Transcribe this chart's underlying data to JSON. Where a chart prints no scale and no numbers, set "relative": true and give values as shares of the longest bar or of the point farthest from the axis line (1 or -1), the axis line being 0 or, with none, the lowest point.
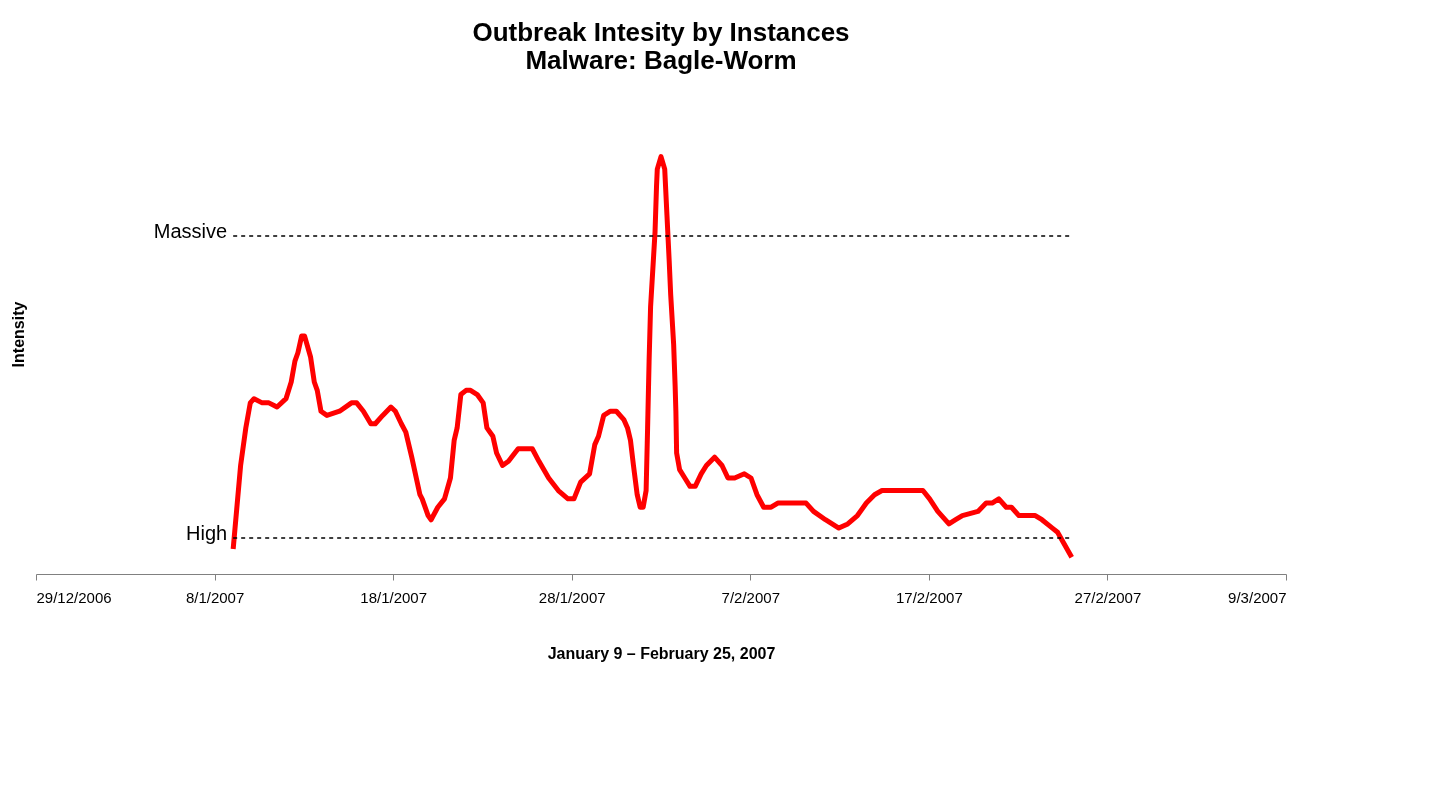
{
  "chart_data": {
    "type": "line",
    "title": "Outbreak Intesity by Instances",
    "subtitle": "Malware: Bagle-Worm",
    "xlabel": "January 9 – February 25, 2007",
    "ylabel": "Intensity",
    "relative": true,
    "grid": false,
    "marker": "none",
    "line_style": "solid",
    "xlim": [
      "2006-12-29",
      "2007-03-09"
    ],
    "xticks": [
      {
        "value": "2006-12-29",
        "label": "29/12/2006"
      },
      {
        "value": "2007-01-08",
        "label": "8/1/2007"
      },
      {
        "value": "2007-01-18",
        "label": "18/1/2007"
      },
      {
        "value": "2007-01-28",
        "label": "28/1/2007"
      },
      {
        "value": "2007-02-07",
        "label": "7/2/2007"
      },
      {
        "value": "2007-02-17",
        "label": "17/2/2007"
      },
      {
        "value": "2007-02-27",
        "label": "27/2/2007"
      },
      {
        "value": "2007-03-09",
        "label": "9/3/2007"
      }
    ],
    "ref_lines": [
      {
        "axis": "y",
        "value": 0.81,
        "label": "Massive",
        "color": "#000000",
        "line_style": "dashed"
      },
      {
        "axis": "y",
        "value": 0.086,
        "label": "High",
        "color": "#000000",
        "line_style": "dashed"
      }
    ],
    "x": [
      "2007-01-09T01:00",
      "2007-01-09T11:00",
      "2007-01-09T18:00",
      "2007-01-10T00:00",
      "2007-01-10T05:00",
      "2007-01-10T16:00",
      "2007-01-11T01:00",
      "2007-01-11T12:00",
      "2007-01-12T00:00",
      "2007-01-12T07:00",
      "2007-01-12T12:00",
      "2007-01-12T16:00",
      "2007-01-12T21:00",
      "2007-01-13T01:00",
      "2007-01-13T09:00",
      "2007-01-13T14:00",
      "2007-01-13T18:00",
      "2007-01-13T23:00",
      "2007-01-14T07:00",
      "2007-01-15T00:00",
      "2007-01-15T16:00",
      "2007-01-15T23:00",
      "2007-01-16T08:00",
      "2007-01-16T18:00",
      "2007-01-17T00:00",
      "2007-01-17T10:00",
      "2007-01-17T21:00",
      "2007-01-18T03:00",
      "2007-01-18T11:00",
      "2007-01-18T17:00",
      "2007-01-19T01:00",
      "2007-01-19T12:00",
      "2007-01-19T15:00",
      "2007-01-19T23:00",
      "2007-01-20T03:00",
      "2007-01-20T12:00",
      "2007-01-20T21:00",
      "2007-01-21T05:00",
      "2007-01-21T10:00",
      "2007-01-21T14:00",
      "2007-01-21T19:00",
      "2007-01-22T02:00",
      "2007-01-22T08:00",
      "2007-01-22T17:00",
      "2007-01-23T01:00",
      "2007-01-23T06:00",
      "2007-01-23T14:00",
      "2007-01-23T19:00",
      "2007-01-24T03:00",
      "2007-01-24T11:00",
      "2007-01-25T00:00",
      "2007-01-25T10:00",
      "2007-01-25T19:00",
      "2007-01-26T04:00",
      "2007-01-26T17:00",
      "2007-01-27T06:00",
      "2007-01-27T19:00",
      "2007-01-28T03:00",
      "2007-01-28T12:00",
      "2007-01-29T00:00",
      "2007-01-29T07:00",
      "2007-01-29T12:00",
      "2007-01-29T19:00",
      "2007-01-30T04:00",
      "2007-01-30T12:00",
      "2007-01-30T22:00",
      "2007-01-31T03:00",
      "2007-01-31T07:00",
      "2007-01-31T11:00",
      "2007-01-31T16:00",
      "2007-01-31T20:00",
      "2007-02-01T00:00",
      "2007-02-01T04:00",
      "2007-02-01T06:00",
      "2007-02-01T08:00",
      "2007-02-01T10:00",
      "2007-02-01T14:00",
      "2007-02-01T16:00",
      "2007-02-01T18:00",
      "2007-02-01T19:00",
      "2007-02-02T00:00",
      "2007-02-02T05:00",
      "2007-02-02T08:00",
      "2007-02-02T11:00",
      "2007-02-02T13:00",
      "2007-02-02T17:00",
      "2007-02-02T19:00",
      "2007-02-02T20:00",
      "2007-02-02T21:00",
      "2007-02-03T01:00",
      "2007-02-03T08:00",
      "2007-02-03T15:00",
      "2007-02-03T22:00",
      "2007-02-04T06:00",
      "2007-02-04T13:00",
      "2007-02-05T00:00",
      "2007-02-05T10:00",
      "2007-02-05T18:00",
      "2007-02-06T03:00",
      "2007-02-06T16:00",
      "2007-02-07T01:00",
      "2007-02-07T09:00",
      "2007-02-07T18:00",
      "2007-02-08T04:00",
      "2007-02-08T13:00",
      "2007-02-09T02:00",
      "2007-02-09T18:00",
      "2007-02-10T03:00",
      "2007-02-10T13:00",
      "2007-02-11T05:00",
      "2007-02-11T14:00",
      "2007-02-11T23:00",
      "2007-02-12T11:00",
      "2007-02-13T00:00",
      "2007-02-13T12:00",
      "2007-02-13T23:00",
      "2007-02-14T09:00",
      "2007-02-14T21:00",
      "2007-02-15T10:00",
      "2007-02-16T05:00",
      "2007-02-16T16:00",
      "2007-02-17T01:00",
      "2007-02-17T12:00",
      "2007-02-18T03:00",
      "2007-02-18T12:00",
      "2007-02-18T21:00",
      "2007-02-19T18:00",
      "2007-02-20T05:00",
      "2007-02-20T13:00",
      "2007-02-20T22:00",
      "2007-02-21T08:00",
      "2007-02-21T15:00",
      "2007-02-22T01:00",
      "2007-02-22T23:00",
      "2007-02-23T08:00",
      "2007-02-23T22:00",
      "2007-02-24T05:00",
      "2007-02-25T00:00"
    ],
    "series": [
      {
        "color": "#ff0000",
        "values": [
          0.06,
          0.26,
          0.35,
          0.41,
          0.42,
          0.41,
          0.41,
          0.4,
          0.42,
          0.46,
          0.51,
          0.53,
          0.57,
          0.57,
          0.52,
          0.46,
          0.44,
          0.39,
          0.38,
          0.39,
          0.41,
          0.41,
          0.39,
          0.36,
          0.36,
          0.38,
          0.4,
          0.39,
          0.36,
          0.34,
          0.28,
          0.19,
          0.18,
          0.14,
          0.13,
          0.16,
          0.18,
          0.23,
          0.32,
          0.35,
          0.43,
          0.44,
          0.44,
          0.43,
          0.41,
          0.35,
          0.33,
          0.29,
          0.26,
          0.27,
          0.3,
          0.3,
          0.3,
          0.27,
          0.23,
          0.2,
          0.18,
          0.18,
          0.22,
          0.24,
          0.31,
          0.33,
          0.38,
          0.39,
          0.39,
          0.37,
          0.35,
          0.32,
          0.26,
          0.19,
          0.16,
          0.16,
          0.2,
          0.35,
          0.51,
          0.64,
          0.76,
          0.82,
          0.93,
          0.97,
          1.0,
          0.97,
          0.86,
          0.75,
          0.67,
          0.55,
          0.45,
          0.39,
          0.29,
          0.25,
          0.23,
          0.21,
          0.21,
          0.24,
          0.26,
          0.28,
          0.26,
          0.23,
          0.23,
          0.24,
          0.23,
          0.19,
          0.16,
          0.16,
          0.17,
          0.17,
          0.17,
          0.17,
          0.15,
          0.13,
          0.12,
          0.11,
          0.12,
          0.14,
          0.17,
          0.19,
          0.2,
          0.2,
          0.2,
          0.2,
          0.2,
          0.18,
          0.15,
          0.12,
          0.13,
          0.14,
          0.15,
          0.17,
          0.17,
          0.18,
          0.16,
          0.16,
          0.14,
          0.14,
          0.13,
          0.11,
          0.1,
          0.04
        ]
      }
    ]
  }
}
